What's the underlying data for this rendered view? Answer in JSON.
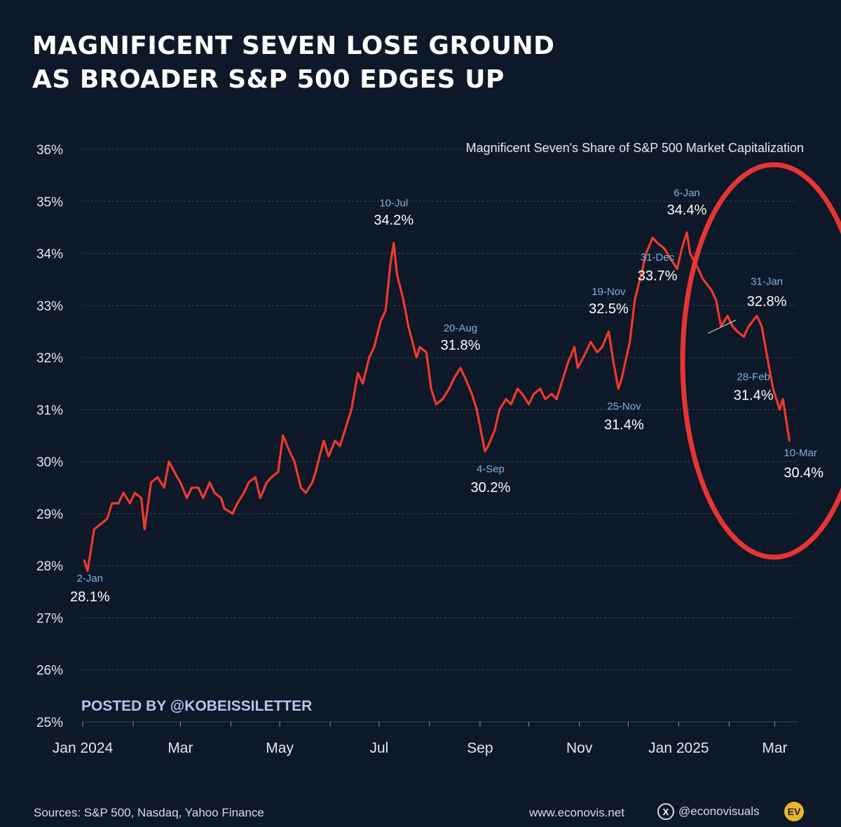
{
  "header": {
    "title_line1": "MAGNIFICENT SEVEN LOSE GROUND",
    "title_line2": "AS BROADER S&P 500 EDGES UP"
  },
  "footer": {
    "sources": "Sources: S&P 500, Nasdaq, Yahoo Finance",
    "website": "www.econovis.net",
    "social": "@econovisuals",
    "x_icon_glyph": "X",
    "logo_text": "EV"
  },
  "icons": [
    "x-logo-icon",
    "econovis-logo"
  ],
  "colors": {
    "background": "#0d1828",
    "line": "#ee3a2c",
    "circle": "#e53535",
    "date_label": "#7fb2e0",
    "value_label": "#ffffff",
    "watermark": "#b9c4ea",
    "grid": "#3c4656"
  },
  "chart_data": {
    "type": "line",
    "subtitle": "Magnificent Seven's Share of S&P 500 Market Capitalization",
    "watermark": "POSTED BY @KOBEISSILETTER",
    "y_unit": "%",
    "ylim": [
      25,
      36
    ],
    "yticks": [
      {
        "value": 36,
        "label": "36%"
      },
      {
        "value": 35,
        "label": "35%"
      },
      {
        "value": 34,
        "label": "34%"
      },
      {
        "value": 33,
        "label": "33%"
      },
      {
        "value": 32,
        "label": "32%"
      },
      {
        "value": 31,
        "label": "31%"
      },
      {
        "value": 30,
        "label": "30%"
      },
      {
        "value": 29,
        "label": "29%"
      },
      {
        "value": 28,
        "label": "28%"
      },
      {
        "value": 27,
        "label": "27%"
      },
      {
        "value": 26,
        "label": "26%"
      },
      {
        "value": 25,
        "label": "25%"
      }
    ],
    "xlim": [
      "2024-01-01",
      "2025-03-15"
    ],
    "xticks": [
      {
        "date": "2024-01-01",
        "label": "Jan 2024"
      },
      {
        "date": "2024-03-01",
        "label": "Mar"
      },
      {
        "date": "2024-05-01",
        "label": "May"
      },
      {
        "date": "2024-07-01",
        "label": "Jul"
      },
      {
        "date": "2024-09-01",
        "label": "Sep"
      },
      {
        "date": "2024-11-01",
        "label": "Nov"
      },
      {
        "date": "2025-01-01",
        "label": "Jan 2025"
      },
      {
        "date": "2025-03-01",
        "label": "Mar"
      }
    ],
    "grid": true,
    "series": [
      {
        "points": [
          [
            "2024-01-02",
            28.1
          ],
          [
            "2024-01-04",
            27.9
          ],
          [
            "2024-01-08",
            28.7
          ],
          [
            "2024-01-12",
            28.8
          ],
          [
            "2024-01-16",
            28.9
          ],
          [
            "2024-01-19",
            29.2
          ],
          [
            "2024-01-23",
            29.2
          ],
          [
            "2024-01-26",
            29.4
          ],
          [
            "2024-01-30",
            29.2
          ],
          [
            "2024-02-02",
            29.4
          ],
          [
            "2024-02-06",
            29.3
          ],
          [
            "2024-02-08",
            28.7
          ],
          [
            "2024-02-12",
            29.6
          ],
          [
            "2024-02-16",
            29.7
          ],
          [
            "2024-02-20",
            29.5
          ],
          [
            "2024-02-23",
            30.0
          ],
          [
            "2024-02-28",
            29.7
          ],
          [
            "2024-03-01",
            29.6
          ],
          [
            "2024-03-05",
            29.3
          ],
          [
            "2024-03-08",
            29.5
          ],
          [
            "2024-03-12",
            29.5
          ],
          [
            "2024-03-15",
            29.3
          ],
          [
            "2024-03-19",
            29.6
          ],
          [
            "2024-03-22",
            29.4
          ],
          [
            "2024-03-26",
            29.3
          ],
          [
            "2024-03-28",
            29.1
          ],
          [
            "2024-04-02",
            29.0
          ],
          [
            "2024-04-05",
            29.2
          ],
          [
            "2024-04-09",
            29.4
          ],
          [
            "2024-04-12",
            29.6
          ],
          [
            "2024-04-16",
            29.7
          ],
          [
            "2024-04-19",
            29.3
          ],
          [
            "2024-04-23",
            29.6
          ],
          [
            "2024-04-26",
            29.7
          ],
          [
            "2024-04-30",
            29.8
          ],
          [
            "2024-05-03",
            30.5
          ],
          [
            "2024-05-07",
            30.2
          ],
          [
            "2024-05-10",
            30.0
          ],
          [
            "2024-05-14",
            29.5
          ],
          [
            "2024-05-17",
            29.4
          ],
          [
            "2024-05-21",
            29.6
          ],
          [
            "2024-05-23",
            29.8
          ],
          [
            "2024-05-28",
            30.4
          ],
          [
            "2024-05-31",
            30.1
          ],
          [
            "2024-06-04",
            30.4
          ],
          [
            "2024-06-07",
            30.3
          ],
          [
            "2024-06-10",
            30.6
          ],
          [
            "2024-06-14",
            31.0
          ],
          [
            "2024-06-18",
            31.7
          ],
          [
            "2024-06-21",
            31.5
          ],
          [
            "2024-06-25",
            32.0
          ],
          [
            "2024-06-28",
            32.2
          ],
          [
            "2024-07-02",
            32.7
          ],
          [
            "2024-07-05",
            32.9
          ],
          [
            "2024-07-08",
            33.8
          ],
          [
            "2024-07-10",
            34.2
          ],
          [
            "2024-07-12",
            33.6
          ],
          [
            "2024-07-16",
            33.1
          ],
          [
            "2024-07-19",
            32.6
          ],
          [
            "2024-07-24",
            32.0
          ],
          [
            "2024-07-26",
            32.2
          ],
          [
            "2024-07-30",
            32.1
          ],
          [
            "2024-08-02",
            31.4
          ],
          [
            "2024-08-05",
            31.1
          ],
          [
            "2024-08-09",
            31.2
          ],
          [
            "2024-08-13",
            31.4
          ],
          [
            "2024-08-16",
            31.6
          ],
          [
            "2024-08-20",
            31.8
          ],
          [
            "2024-08-23",
            31.6
          ],
          [
            "2024-08-27",
            31.3
          ],
          [
            "2024-08-30",
            31.0
          ],
          [
            "2024-09-04",
            30.2
          ],
          [
            "2024-09-06",
            30.3
          ],
          [
            "2024-09-10",
            30.6
          ],
          [
            "2024-09-13",
            31.0
          ],
          [
            "2024-09-17",
            31.2
          ],
          [
            "2024-09-20",
            31.1
          ],
          [
            "2024-09-24",
            31.4
          ],
          [
            "2024-09-27",
            31.3
          ],
          [
            "2024-10-01",
            31.1
          ],
          [
            "2024-10-04",
            31.3
          ],
          [
            "2024-10-08",
            31.4
          ],
          [
            "2024-10-11",
            31.2
          ],
          [
            "2024-10-15",
            31.3
          ],
          [
            "2024-10-18",
            31.2
          ],
          [
            "2024-10-22",
            31.6
          ],
          [
            "2024-10-25",
            31.9
          ],
          [
            "2024-10-29",
            32.2
          ],
          [
            "2024-10-31",
            31.8
          ],
          [
            "2024-11-05",
            32.1
          ],
          [
            "2024-11-08",
            32.3
          ],
          [
            "2024-11-12",
            32.1
          ],
          [
            "2024-11-15",
            32.2
          ],
          [
            "2024-11-19",
            32.5
          ],
          [
            "2024-11-22",
            31.9
          ],
          [
            "2024-11-25",
            31.4
          ],
          [
            "2024-11-27",
            31.6
          ],
          [
            "2024-12-02",
            32.3
          ],
          [
            "2024-12-05",
            33.1
          ],
          [
            "2024-12-09",
            33.6
          ],
          [
            "2024-12-12",
            34.0
          ],
          [
            "2024-12-16",
            34.3
          ],
          [
            "2024-12-19",
            34.2
          ],
          [
            "2024-12-23",
            34.1
          ],
          [
            "2024-12-27",
            33.9
          ],
          [
            "2024-12-31",
            33.7
          ],
          [
            "2025-01-03",
            34.1
          ],
          [
            "2025-01-06",
            34.4
          ],
          [
            "2025-01-08",
            34.0
          ],
          [
            "2025-01-13",
            33.7
          ],
          [
            "2025-01-16",
            33.5
          ],
          [
            "2025-01-21",
            33.3
          ],
          [
            "2025-01-24",
            33.1
          ],
          [
            "2025-01-27",
            32.6
          ],
          [
            "2025-01-31",
            32.8
          ],
          [
            "2025-02-03",
            32.6
          ],
          [
            "2025-02-06",
            32.5
          ],
          [
            "2025-02-10",
            32.4
          ],
          [
            "2025-02-13",
            32.6
          ],
          [
            "2025-02-18",
            32.8
          ],
          [
            "2025-02-21",
            32.6
          ],
          [
            "2025-02-25",
            31.9
          ],
          [
            "2025-02-28",
            31.4
          ],
          [
            "2025-03-04",
            31.0
          ],
          [
            "2025-03-06",
            31.2
          ],
          [
            "2025-03-10",
            30.4
          ]
        ]
      }
    ],
    "annotations": [
      {
        "date_label": "2-Jan",
        "value_label": "28.1%",
        "x": "2024-01-02",
        "y": 28.1,
        "position": "below"
      },
      {
        "date_label": "10-Jul",
        "value_label": "34.2%",
        "x": "2024-07-10",
        "y": 34.2,
        "position": "above"
      },
      {
        "date_label": "20-Aug",
        "value_label": "31.8%",
        "x": "2024-08-20",
        "y": 31.8,
        "position": "above"
      },
      {
        "date_label": "4-Sep",
        "value_label": "30.2%",
        "x": "2024-09-04",
        "y": 30.2,
        "position": "below"
      },
      {
        "date_label": "19-Nov",
        "value_label": "32.5%",
        "x": "2024-11-19",
        "y": 32.5,
        "position": "above"
      },
      {
        "date_label": "25-Nov",
        "value_label": "31.4%",
        "x": "2024-11-25",
        "y": 31.4,
        "position": "below"
      },
      {
        "date_label": "31-Dec",
        "value_label": "33.7%",
        "x": "2024-12-31",
        "y": 33.7,
        "position": "left"
      },
      {
        "date_label": "6-Jan",
        "value_label": "34.4%",
        "x": "2025-01-06",
        "y": 34.4,
        "position": "above"
      },
      {
        "date_label": "31-Jan",
        "value_label": "32.8%",
        "x": "2025-01-31",
        "y": 32.8,
        "position": "upper-right"
      },
      {
        "date_label": "28-Feb",
        "value_label": "31.4%",
        "x": "2025-02-28",
        "y": 31.4,
        "position": "left"
      },
      {
        "date_label": "10-Mar",
        "value_label": "30.4%",
        "x": "2025-03-10",
        "y": 30.4,
        "position": "lower-right"
      }
    ],
    "highlight": {
      "shape": "ellipse",
      "from": "2024-12-31",
      "to": "2025-03-10"
    }
  }
}
